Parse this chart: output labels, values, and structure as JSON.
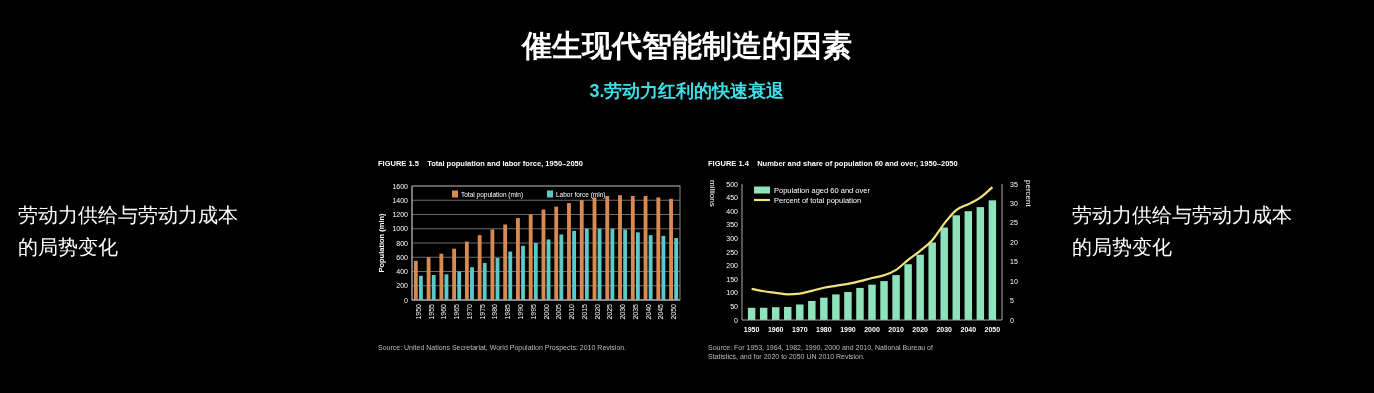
{
  "chart_data": [
    {
      "type": "other",
      "title": "催生现代智能制造的因素",
      "subtitle": "3.劳动力红利的快速衰退",
      "annotations": [
        "劳动力供给与劳动力成本的局势变化",
        "劳动力供给与劳动力成本的局势变化"
      ]
    },
    {
      "type": "bar",
      "title": "FIGURE 1.5    Total population and labor force, 1950–2050",
      "ylabel": "Population (mln)",
      "categories": [
        "1950",
        "1955",
        "1960",
        "1965",
        "1970",
        "1975",
        "1980",
        "1985",
        "1990",
        "1995",
        "2000",
        "2005",
        "2010",
        "2015",
        "2020",
        "2025",
        "2030",
        "2035",
        "2040",
        "2045",
        "2050"
      ],
      "series": [
        {
          "name": "Total population (mln)",
          "color": "#d98a52",
          "values": [
            550,
            600,
            650,
            720,
            820,
            910,
            990,
            1060,
            1150,
            1200,
            1270,
            1310,
            1360,
            1400,
            1440,
            1460,
            1470,
            1460,
            1460,
            1440,
            1420
          ]
        },
        {
          "name": "Labor force (mln)",
          "color": "#5cc9c9",
          "values": [
            340,
            350,
            360,
            400,
            460,
            520,
            590,
            680,
            760,
            800,
            850,
            920,
            970,
            1000,
            1000,
            1000,
            990,
            950,
            910,
            900,
            870
          ]
        }
      ],
      "ylim": [
        0,
        1600
      ],
      "yticks": [
        0,
        200,
        400,
        600,
        800,
        1000,
        1200,
        1400,
        1600
      ],
      "grid": "y",
      "legend": "top",
      "annotations": [
        "Source: United Nations Secretariat, World Population Prospects: 2010 Revision."
      ]
    },
    {
      "type": "bar",
      "title": "FIGURE 1.4    Number and share of population 60 and over, 1950–2050",
      "ylabel": "millions",
      "y2label": "percent",
      "x": [
        1950,
        1955,
        1960,
        1965,
        1970,
        1975,
        1980,
        1985,
        1990,
        1995,
        2000,
        2005,
        2010,
        2015,
        2020,
        2025,
        2030,
        2035,
        2040,
        2045,
        2050
      ],
      "series": [
        {
          "name": "Population aged 60 and over",
          "type": "bar",
          "color": "#8fe3bb",
          "values": [
            45,
            45,
            47,
            48,
            57,
            70,
            82,
            94,
            103,
            118,
            130,
            143,
            165,
            205,
            240,
            285,
            340,
            385,
            400,
            415,
            440
          ]
        },
        {
          "name": "Percent of total population",
          "type": "line",
          "axis": "y2",
          "color": "#f2e27a",
          "values": [
            8,
            7.4,
            7,
            6.6,
            6.8,
            7.5,
            8.3,
            8.8,
            9.3,
            10,
            10.8,
            11.5,
            12.9,
            15.5,
            17.8,
            20.5,
            24.8,
            28.3,
            29.8,
            31.5,
            34.2
          ]
        }
      ],
      "xlim": [
        1946,
        2054
      ],
      "xticks": [
        1950,
        1960,
        1970,
        1980,
        1990,
        2000,
        2010,
        2020,
        2030,
        2040,
        2050
      ],
      "ylim": [
        0,
        500
      ],
      "yticks": [
        0,
        50,
        100,
        150,
        200,
        250,
        300,
        350,
        400,
        450,
        500
      ],
      "y2lim": [
        0,
        35
      ],
      "y2ticks": [
        0,
        5,
        10,
        15,
        20,
        25,
        30,
        35
      ],
      "legend": "top left",
      "marker": "none",
      "annotations": [
        "Source: For 1953, 1964, 1982, 1990, 2000 and 2010, National Bureau of Statistics, and for 2020 to 2050 UN 2010 Revision."
      ]
    }
  ]
}
